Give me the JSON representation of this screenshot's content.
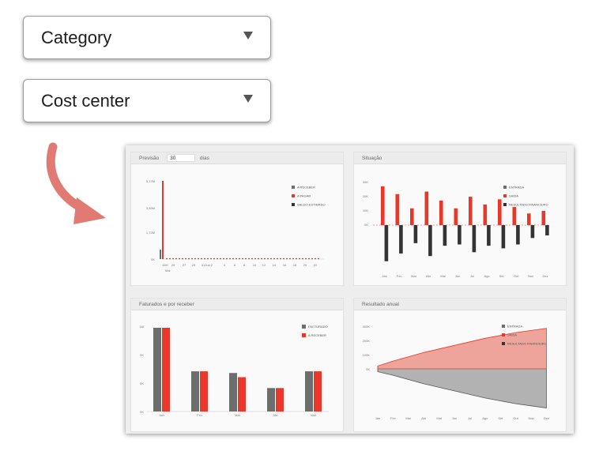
{
  "dropdowns": {
    "category": {
      "label": "Category"
    },
    "cost_center": {
      "label": "Cost center"
    }
  },
  "colors": {
    "red": "#e8382a",
    "gray": "#6d6d6d",
    "dark": "#333333",
    "arrow": "#e07a72"
  },
  "dashboard": {
    "forecast": {
      "title_prefix": "Previsão",
      "days_value": "30",
      "days_suffix": "dias",
      "legend": [
        "A RECEBER",
        "A PAGAR",
        "SALDO ESTIMADO"
      ],
      "yticks": [
        "5,17M",
        "3,45M",
        "1,72M",
        "0K"
      ],
      "xticks": [
        "18H",
        "25",
        "27",
        "29",
        "31Jun 2",
        "4",
        "6",
        "8",
        "10",
        "12",
        "14",
        "16",
        "18",
        "20",
        "22"
      ],
      "xsub": "Mai"
    },
    "situacao": {
      "title": "Situação",
      "legend": [
        "ENTRADA",
        "SAÍDA",
        "RESULTADO FINANCEIRO"
      ],
      "yticks": [
        "30K",
        "20K",
        "10K",
        "0K"
      ],
      "months": [
        "Jan",
        "Fev",
        "Mar",
        "Abr",
        "Mai",
        "Jun",
        "Jul",
        "Ago",
        "Set",
        "Out",
        "Nov",
        "Dez"
      ]
    },
    "faturados": {
      "title": "Faturados e por receber",
      "legend": [
        "FACTURADO",
        "A RECEBER"
      ],
      "yticks": [
        "1M",
        "0K",
        "0K",
        "0K"
      ],
      "months": [
        "Jan",
        "Fev",
        "Mar",
        "Abr",
        "Mai"
      ]
    },
    "resultado": {
      "title": "Resultado anual",
      "legend": [
        "ENTRADA",
        "SAÍDA",
        "RESULTADO FINANCEIRO"
      ],
      "yticks": [
        "300K",
        "200K",
        "100K",
        "0K"
      ],
      "months": [
        "Jan",
        "Fev",
        "Mar",
        "Abr",
        "Mai",
        "Jun",
        "Jul",
        "Ago",
        "Set",
        "Out",
        "Nov",
        "Dez"
      ]
    }
  },
  "chart_data": [
    {
      "type": "bar",
      "title": "Previsão",
      "series": [
        {
          "name": "A RECEBER",
          "x": [
            "18H"
          ],
          "values": [
            0.62
          ]
        },
        {
          "name": "A PAGAR",
          "x": [
            "18H"
          ],
          "values": [
            5.17
          ]
        }
      ],
      "ylim": [
        0,
        5.17
      ]
    },
    {
      "type": "bar",
      "title": "Situação",
      "categories": [
        "Jan",
        "Fev",
        "Mar",
        "Abr",
        "Mai",
        "Jun",
        "Jul",
        "Ago",
        "Set",
        "Out",
        "Nov",
        "Dez"
      ],
      "series": [
        {
          "name": "SAÍDA",
          "values": [
            30,
            24,
            13,
            26,
            19,
            13,
            22,
            16,
            20,
            14,
            9,
            11
          ]
        },
        {
          "name": "RESULTADO FINANCEIRO",
          "values": [
            -28,
            -22,
            -14,
            -24,
            -16,
            -15,
            -21,
            -16,
            -18,
            -15,
            -10,
            -8
          ]
        }
      ],
      "ylim": [
        -30,
        30
      ]
    },
    {
      "type": "bar",
      "title": "Faturados e por receber",
      "categories": [
        "Jan",
        "Fev",
        "Mar",
        "Abr",
        "Mai"
      ],
      "series": [
        {
          "name": "FACTURADO",
          "values": [
            1.0,
            0.48,
            0.46,
            0.28,
            0.48
          ]
        },
        {
          "name": "A RECEBER",
          "values": [
            1.0,
            0.48,
            0.41,
            0.28,
            0.48
          ]
        }
      ],
      "ylim": [
        0,
        1.0
      ]
    },
    {
      "type": "area",
      "title": "Resultado anual",
      "categories": [
        "Jan",
        "Fev",
        "Mar",
        "Abr",
        "Mai",
        "Jun",
        "Jul",
        "Ago",
        "Set",
        "Out",
        "Nov",
        "Dez"
      ],
      "series": [
        {
          "name": "SAÍDA",
          "values": [
            20,
            55,
            85,
            115,
            140,
            165,
            190,
            215,
            235,
            255,
            270,
            285
          ]
        },
        {
          "name": "RESULTADO FINANCEIRO",
          "values": [
            -20,
            -45,
            -75,
            -105,
            -130,
            -155,
            -180,
            -205,
            -225,
            -245,
            -260,
            -275
          ]
        }
      ],
      "ylim": [
        -300,
        300
      ]
    }
  ]
}
